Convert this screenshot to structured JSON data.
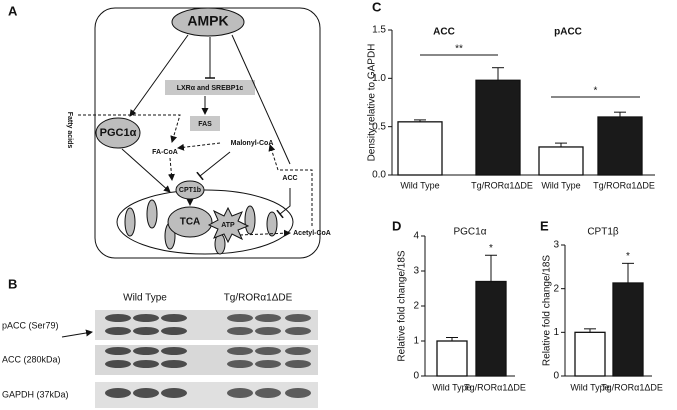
{
  "diagram": {
    "label": "A",
    "nodes": {
      "ampk": "AMPK",
      "lxr": "LXRα and SREBP1c",
      "fas": "FAS",
      "pgc1a": "PGC1α",
      "fatty_acids": "Fatty acids",
      "fa_coa": "FA-CoA",
      "malonyl_coa": "Malonyl-CoA",
      "acc": "ACC",
      "cpt1b": "CPT1b",
      "tca": "TCA",
      "atp": "ATP",
      "acetyl_coa": "Acetyl-CoA"
    }
  },
  "blot": {
    "label": "B",
    "groups": [
      "Wild Type",
      "Tg/RORα1ΔDE"
    ],
    "rows": [
      "pACC (Ser79)",
      "ACC (280kDa)",
      "GAPDH (37kDa)"
    ]
  },
  "chart_data": [
    {
      "type": "bar",
      "label": "C",
      "group_titles": [
        "ACC",
        "pACC"
      ],
      "y_label": "Density relative to GAPDH",
      "categories": [
        "Wild Type",
        "Tg/RORα1ΔDE",
        "Wild Type",
        "Tg/RORα1ΔDE"
      ],
      "values": [
        0.55,
        0.98,
        0.29,
        0.6
      ],
      "errors": [
        0.02,
        0.13,
        0.04,
        0.05
      ],
      "colors": [
        "#ffffff",
        "#1a1a1a",
        "#ffffff",
        "#1a1a1a"
      ],
      "significance": [
        "**",
        "*"
      ],
      "ylim": [
        0,
        1.5
      ],
      "yticks": [
        {
          "value": 0,
          "label": "0.0"
        },
        {
          "value": 0.5,
          "label": "0.5"
        },
        {
          "value": 1,
          "label": "1.0"
        },
        {
          "value": 1.5,
          "label": "1.5"
        }
      ]
    },
    {
      "type": "bar",
      "label": "D",
      "title": "PGC1α",
      "y_label": "Relative fold change/18S",
      "categories": [
        "Wild Type",
        "Tg/RORα1ΔDE"
      ],
      "values": [
        1.0,
        2.7
      ],
      "errors": [
        0.1,
        0.75
      ],
      "colors": [
        "#ffffff",
        "#1a1a1a"
      ],
      "significance": [
        "*"
      ],
      "ylim": [
        0,
        4
      ],
      "yticks": [
        0,
        1,
        2,
        3,
        4
      ]
    },
    {
      "type": "bar",
      "label": "E",
      "title": "CPT1β",
      "y_label": "Relative fold change/18S",
      "categories": [
        "Wild Type",
        "Tg/RORα1ΔDE"
      ],
      "values": [
        1.0,
        2.13
      ],
      "errors": [
        0.08,
        0.45
      ],
      "colors": [
        "#ffffff",
        "#1a1a1a"
      ],
      "significance": [
        "*"
      ],
      "ylim": [
        0,
        3
      ],
      "yticks": [
        0,
        1,
        2,
        3
      ]
    }
  ]
}
